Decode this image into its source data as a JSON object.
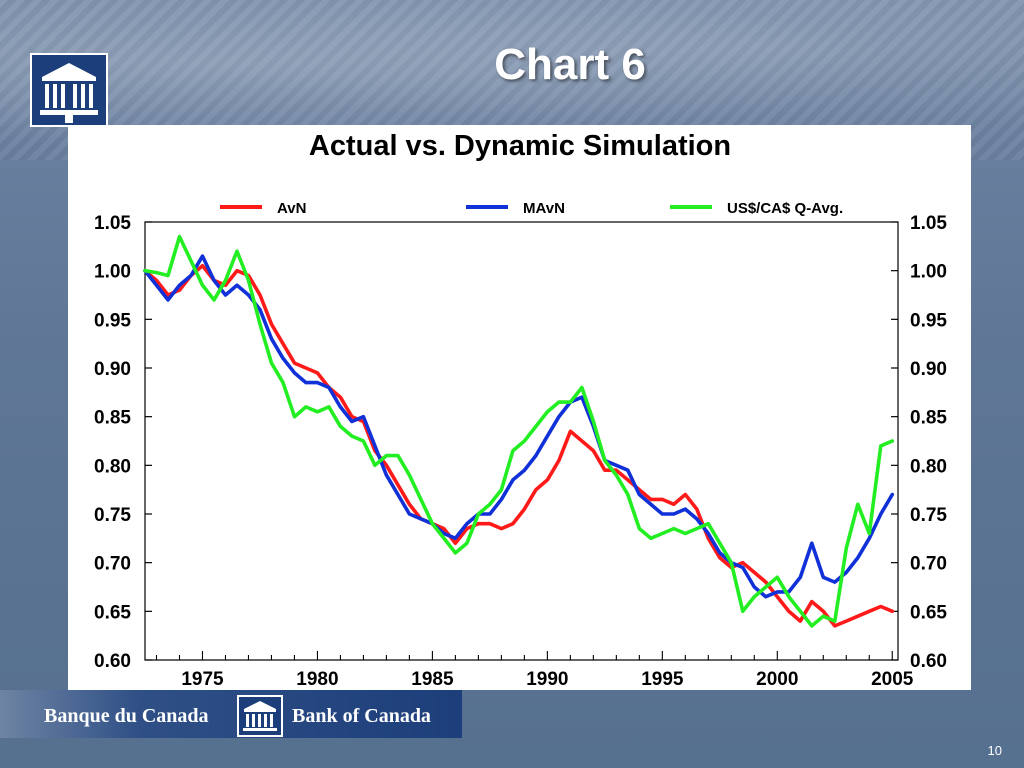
{
  "slide": {
    "title": "Chart 6",
    "page_number": "10"
  },
  "footer": {
    "name_fr": "Banque du Canada",
    "name_en": "Bank of Canada"
  },
  "colors": {
    "avn": "#ff1a1a",
    "mavn": "#1030d8",
    "usd": "#22ee22",
    "brand_blue": "#1c3e7a"
  },
  "icons": [
    "bank-building-icon"
  ],
  "chart_data": {
    "type": "line",
    "title": "Actual vs. Dynamic Simulation",
    "xlabel": "",
    "ylabel": "",
    "xlim": [
      1972.5,
      2005.25
    ],
    "ylim": [
      0.6,
      1.05
    ],
    "x_ticks": [
      1975,
      1980,
      1985,
      1990,
      1995,
      2000,
      2005
    ],
    "y_ticks": [
      0.6,
      0.65,
      0.7,
      0.75,
      0.8,
      0.85,
      0.9,
      0.95,
      1.0,
      1.05
    ],
    "y_tick_labels": [
      "0.60",
      "0.65",
      "0.70",
      "0.75",
      "0.80",
      "0.85",
      "0.90",
      "0.95",
      "1.00",
      "1.05"
    ],
    "legend_position": "top",
    "grid": false,
    "secondary_y_axis": true,
    "series": [
      {
        "name": "AvN",
        "color": "#ff1a1a",
        "points": [
          [
            1972.5,
            1.0
          ],
          [
            1973.0,
            0.99
          ],
          [
            1973.5,
            0.975
          ],
          [
            1974.0,
            0.98
          ],
          [
            1974.5,
            0.995
          ],
          [
            1975.0,
            1.005
          ],
          [
            1975.5,
            0.99
          ],
          [
            1976.0,
            0.985
          ],
          [
            1976.5,
            1.0
          ],
          [
            1977.0,
            0.995
          ],
          [
            1977.5,
            0.975
          ],
          [
            1978.0,
            0.945
          ],
          [
            1978.5,
            0.925
          ],
          [
            1979.0,
            0.905
          ],
          [
            1979.5,
            0.9
          ],
          [
            1980.0,
            0.895
          ],
          [
            1980.5,
            0.88
          ],
          [
            1981.0,
            0.87
          ],
          [
            1981.5,
            0.85
          ],
          [
            1982.0,
            0.845
          ],
          [
            1982.5,
            0.815
          ],
          [
            1983.0,
            0.8
          ],
          [
            1983.5,
            0.78
          ],
          [
            1984.0,
            0.76
          ],
          [
            1984.5,
            0.745
          ],
          [
            1985.0,
            0.74
          ],
          [
            1985.5,
            0.735
          ],
          [
            1986.0,
            0.72
          ],
          [
            1986.5,
            0.735
          ],
          [
            1987.0,
            0.74
          ],
          [
            1987.5,
            0.74
          ],
          [
            1988.0,
            0.735
          ],
          [
            1988.5,
            0.74
          ],
          [
            1989.0,
            0.755
          ],
          [
            1989.5,
            0.775
          ],
          [
            1990.0,
            0.785
          ],
          [
            1990.5,
            0.805
          ],
          [
            1991.0,
            0.835
          ],
          [
            1991.5,
            0.825
          ],
          [
            1992.0,
            0.815
          ],
          [
            1992.5,
            0.795
          ],
          [
            1993.0,
            0.795
          ],
          [
            1993.5,
            0.785
          ],
          [
            1994.0,
            0.775
          ],
          [
            1994.5,
            0.765
          ],
          [
            1995.0,
            0.765
          ],
          [
            1995.5,
            0.76
          ],
          [
            1996.0,
            0.77
          ],
          [
            1996.5,
            0.755
          ],
          [
            1997.0,
            0.725
          ],
          [
            1997.5,
            0.705
          ],
          [
            1998.0,
            0.695
          ],
          [
            1998.5,
            0.7
          ],
          [
            1999.0,
            0.69
          ],
          [
            1999.5,
            0.68
          ],
          [
            2000.0,
            0.665
          ],
          [
            2000.5,
            0.65
          ],
          [
            2001.0,
            0.64
          ],
          [
            2001.5,
            0.66
          ],
          [
            2002.0,
            0.65
          ],
          [
            2002.5,
            0.635
          ],
          [
            2003.0,
            0.64
          ],
          [
            2003.5,
            0.645
          ],
          [
            2004.0,
            0.65
          ],
          [
            2004.5,
            0.655
          ],
          [
            2005.0,
            0.65
          ]
        ]
      },
      {
        "name": "MAvN",
        "color": "#1030d8",
        "points": [
          [
            1972.5,
            1.0
          ],
          [
            1973.0,
            0.985
          ],
          [
            1973.5,
            0.97
          ],
          [
            1974.0,
            0.985
          ],
          [
            1974.5,
            0.995
          ],
          [
            1975.0,
            1.015
          ],
          [
            1975.5,
            0.99
          ],
          [
            1976.0,
            0.975
          ],
          [
            1976.5,
            0.985
          ],
          [
            1977.0,
            0.975
          ],
          [
            1977.5,
            0.96
          ],
          [
            1978.0,
            0.93
          ],
          [
            1978.5,
            0.91
          ],
          [
            1979.0,
            0.895
          ],
          [
            1979.5,
            0.885
          ],
          [
            1980.0,
            0.885
          ],
          [
            1980.5,
            0.88
          ],
          [
            1981.0,
            0.86
          ],
          [
            1981.5,
            0.845
          ],
          [
            1982.0,
            0.85
          ],
          [
            1982.5,
            0.82
          ],
          [
            1983.0,
            0.79
          ],
          [
            1983.5,
            0.77
          ],
          [
            1984.0,
            0.75
          ],
          [
            1984.5,
            0.745
          ],
          [
            1985.0,
            0.74
          ],
          [
            1985.5,
            0.73
          ],
          [
            1986.0,
            0.725
          ],
          [
            1986.5,
            0.74
          ],
          [
            1987.0,
            0.75
          ],
          [
            1987.5,
            0.75
          ],
          [
            1988.0,
            0.765
          ],
          [
            1988.5,
            0.785
          ],
          [
            1989.0,
            0.795
          ],
          [
            1989.5,
            0.81
          ],
          [
            1990.0,
            0.83
          ],
          [
            1990.5,
            0.85
          ],
          [
            1991.0,
            0.865
          ],
          [
            1991.5,
            0.87
          ],
          [
            1992.0,
            0.84
          ],
          [
            1992.5,
            0.805
          ],
          [
            1993.0,
            0.8
          ],
          [
            1993.5,
            0.795
          ],
          [
            1994.0,
            0.77
          ],
          [
            1994.5,
            0.76
          ],
          [
            1995.0,
            0.75
          ],
          [
            1995.5,
            0.75
          ],
          [
            1996.0,
            0.755
          ],
          [
            1996.5,
            0.745
          ],
          [
            1997.0,
            0.73
          ],
          [
            1997.5,
            0.71
          ],
          [
            1998.0,
            0.7
          ],
          [
            1998.5,
            0.695
          ],
          [
            1999.0,
            0.675
          ],
          [
            1999.5,
            0.665
          ],
          [
            2000.0,
            0.67
          ],
          [
            2000.5,
            0.67
          ],
          [
            2001.0,
            0.685
          ],
          [
            2001.5,
            0.72
          ],
          [
            2002.0,
            0.685
          ],
          [
            2002.5,
            0.68
          ],
          [
            2003.0,
            0.69
          ],
          [
            2003.5,
            0.705
          ],
          [
            2004.0,
            0.725
          ],
          [
            2004.5,
            0.75
          ],
          [
            2005.0,
            0.77
          ]
        ]
      },
      {
        "name": "US$/CA$ Q-Avg.",
        "color": "#22ee22",
        "points": [
          [
            1972.5,
            1.0
          ],
          [
            1973.0,
            0.998
          ],
          [
            1973.5,
            0.995
          ],
          [
            1974.0,
            1.035
          ],
          [
            1974.5,
            1.01
          ],
          [
            1975.0,
            0.985
          ],
          [
            1975.5,
            0.97
          ],
          [
            1976.0,
            0.99
          ],
          [
            1976.5,
            1.02
          ],
          [
            1977.0,
            0.99
          ],
          [
            1977.5,
            0.945
          ],
          [
            1978.0,
            0.905
          ],
          [
            1978.5,
            0.885
          ],
          [
            1979.0,
            0.85
          ],
          [
            1979.5,
            0.86
          ],
          [
            1980.0,
            0.855
          ],
          [
            1980.5,
            0.86
          ],
          [
            1981.0,
            0.84
          ],
          [
            1981.5,
            0.83
          ],
          [
            1982.0,
            0.825
          ],
          [
            1982.5,
            0.8
          ],
          [
            1983.0,
            0.81
          ],
          [
            1983.5,
            0.81
          ],
          [
            1984.0,
            0.79
          ],
          [
            1984.5,
            0.765
          ],
          [
            1985.0,
            0.74
          ],
          [
            1985.5,
            0.725
          ],
          [
            1986.0,
            0.71
          ],
          [
            1986.5,
            0.72
          ],
          [
            1987.0,
            0.75
          ],
          [
            1987.5,
            0.76
          ],
          [
            1988.0,
            0.775
          ],
          [
            1988.5,
            0.815
          ],
          [
            1989.0,
            0.825
          ],
          [
            1989.5,
            0.84
          ],
          [
            1990.0,
            0.855
          ],
          [
            1990.5,
            0.865
          ],
          [
            1991.0,
            0.865
          ],
          [
            1991.5,
            0.88
          ],
          [
            1992.0,
            0.845
          ],
          [
            1992.5,
            0.805
          ],
          [
            1993.0,
            0.79
          ],
          [
            1993.5,
            0.77
          ],
          [
            1994.0,
            0.735
          ],
          [
            1994.5,
            0.725
          ],
          [
            1995.0,
            0.73
          ],
          [
            1995.5,
            0.735
          ],
          [
            1996.0,
            0.73
          ],
          [
            1996.5,
            0.735
          ],
          [
            1997.0,
            0.74
          ],
          [
            1997.5,
            0.72
          ],
          [
            1998.0,
            0.7
          ],
          [
            1998.5,
            0.65
          ],
          [
            1999.0,
            0.665
          ],
          [
            1999.5,
            0.675
          ],
          [
            2000.0,
            0.685
          ],
          [
            2000.5,
            0.665
          ],
          [
            2001.0,
            0.65
          ],
          [
            2001.5,
            0.635
          ],
          [
            2002.0,
            0.645
          ],
          [
            2002.5,
            0.64
          ],
          [
            2003.0,
            0.715
          ],
          [
            2003.5,
            0.76
          ],
          [
            2004.0,
            0.73
          ],
          [
            2004.5,
            0.82
          ],
          [
            2005.0,
            0.825
          ]
        ]
      }
    ]
  }
}
